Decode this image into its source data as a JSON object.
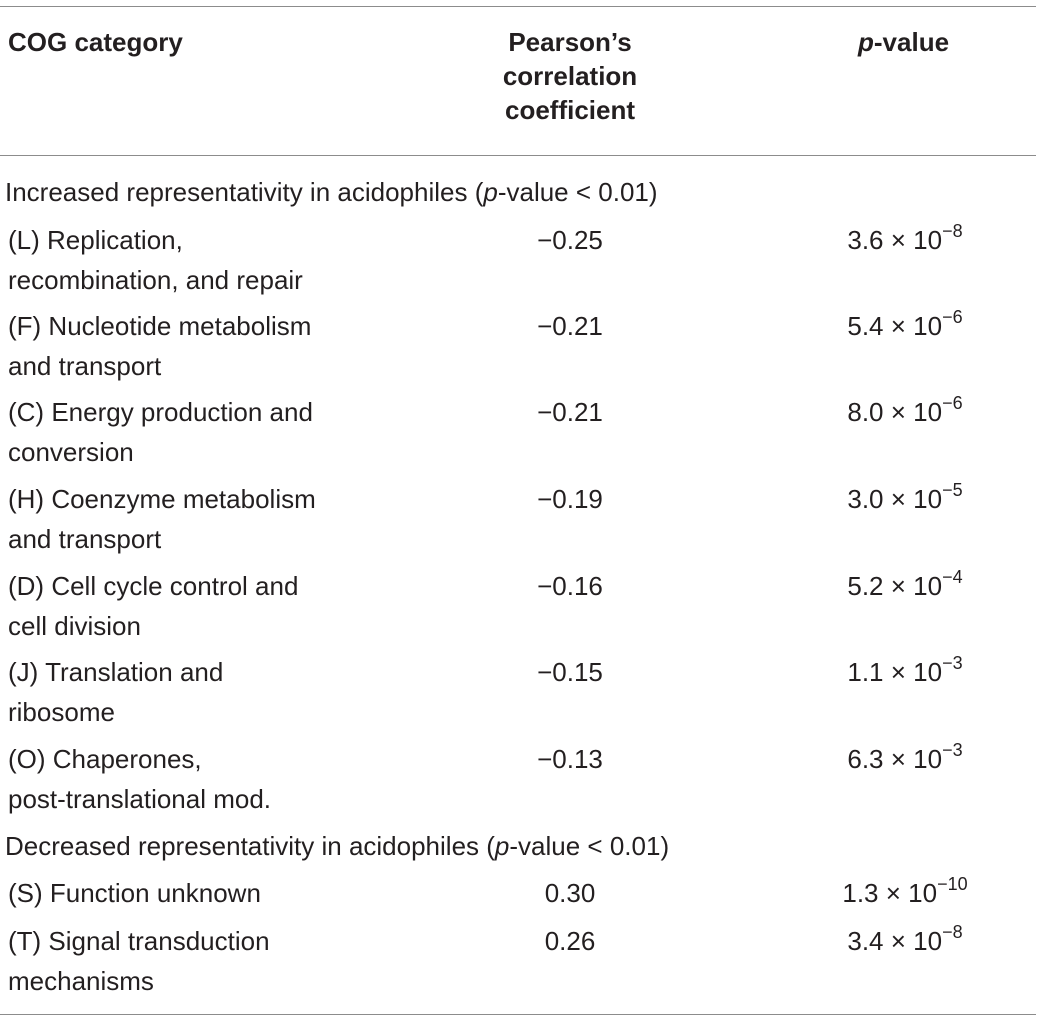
{
  "header": {
    "col1": "COG category",
    "col2_line1": "Pearson’s",
    "col2_line2": "correlation",
    "col2_line3": "coefficient",
    "col3_italic": "p",
    "col3_rest": "-value"
  },
  "sections": [
    {
      "label_before": "Increased representativity in acidophiles (",
      "label_italic": "p",
      "label_after": "-value < 0.01)",
      "rows": [
        {
          "cat1": "(L) Replication,",
          "cat2": "recombination, and repair",
          "coef": "−0.25",
          "p_base": "3.6 × 10",
          "p_exp": "−8"
        },
        {
          "cat1": "(F) Nucleotide metabolism",
          "cat2": "and transport",
          "coef": "−0.21",
          "p_base": "5.4 × 10",
          "p_exp": "−6"
        },
        {
          "cat1": "(C) Energy production and",
          "cat2": "conversion",
          "coef": "−0.21",
          "p_base": "8.0 × 10",
          "p_exp": "−6"
        },
        {
          "cat1": "(H) Coenzyme metabolism",
          "cat2": "and transport",
          "coef": "−0.19",
          "p_base": "3.0 × 10",
          "p_exp": "−5"
        },
        {
          "cat1": "(D) Cell cycle control and",
          "cat2": "cell division",
          "coef": "−0.16",
          "p_base": "5.2 × 10",
          "p_exp": "−4"
        },
        {
          "cat1": "(J) Translation and",
          "cat2": "ribosome",
          "coef": "−0.15",
          "p_base": "1.1 × 10",
          "p_exp": "−3"
        },
        {
          "cat1": "(O) Chaperones,",
          "cat2": "post-translational mod.",
          "coef": "−0.13",
          "p_base": "6.3 × 10",
          "p_exp": "−3"
        }
      ]
    },
    {
      "label_before": "Decreased representativity in acidophiles (",
      "label_italic": "p",
      "label_after": "-value < 0.01)",
      "rows": [
        {
          "cat1": "(S) Function unknown",
          "cat2": "",
          "coef": "0.30",
          "p_base": "1.3 × 10",
          "p_exp": "−10"
        },
        {
          "cat1": "(T) Signal transduction",
          "cat2": "mechanisms",
          "coef": "0.26",
          "p_base": "3.4 × 10",
          "p_exp": "−8"
        }
      ]
    }
  ]
}
